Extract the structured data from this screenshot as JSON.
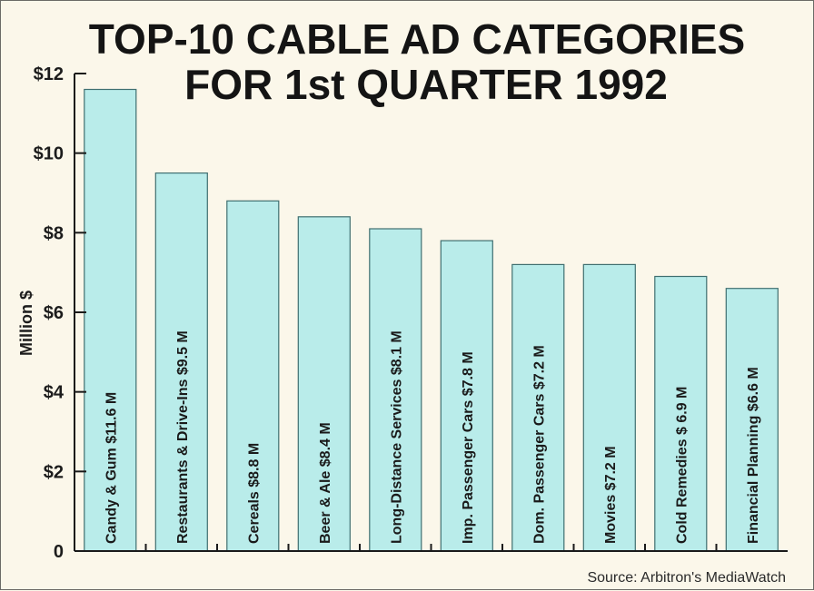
{
  "chart_data": {
    "type": "bar",
    "title": [
      "TOP-10 CABLE AD CATEGORIES",
      "FOR 1st QUARTER 1992"
    ],
    "ylabel": "Million $",
    "xlabel": "",
    "ylim": [
      0,
      12
    ],
    "yticks": [
      0,
      2,
      4,
      6,
      8,
      10,
      12
    ],
    "ytick_labels": [
      "0",
      "$2",
      "$4",
      "$6",
      "$8",
      "$10",
      "$12"
    ],
    "categories": [
      "Candy & Gum",
      "Restaurants & Drive-Ins",
      "Cereals",
      "Beer & Ale",
      "Long-Distance Services",
      "Imp. Passenger Cars",
      "Dom. Passenger Cars",
      "Movies",
      "Cold Remedies",
      "Financial Planning"
    ],
    "values": [
      11.6,
      9.5,
      8.8,
      8.4,
      8.1,
      7.8,
      7.2,
      7.2,
      6.9,
      6.6
    ],
    "bar_labels": [
      "Candy & Gum $11.6 M",
      "Restaurants & Drive-Ins $9.5 M",
      "Cereals $8.8 M",
      "Beer & Ale $8.4 M",
      "Long-Distance Services $8.1 M",
      "Imp. Passenger Cars $7.8 M",
      "Dom. Passenger Cars $7.2 M",
      "Movies $7.2 M",
      "Cold Remedies $ 6.9 M",
      "Financial Planning $6.6 M"
    ],
    "source": "Source: Arbitron's MediaWatch",
    "grid": false,
    "colors": {
      "bar": "#b9ecea",
      "bar_edge": "#3f6f70",
      "axis": "#1a1a1a",
      "text": "#141414"
    }
  }
}
